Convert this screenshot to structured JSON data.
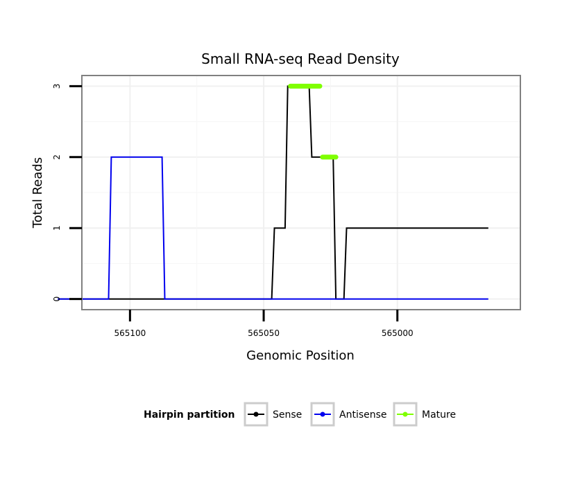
{
  "chart_data": {
    "type": "line",
    "title": "Small RNA-seq Read Density",
    "xlabel": "Genomic Position",
    "ylabel": "Total Reads",
    "x_reversed": true,
    "xlim": [
      565118,
      564954
    ],
    "ylim": [
      -0.15,
      3.15
    ],
    "x_ticks": [
      565100,
      565050,
      565000
    ],
    "x_tick_labels": [
      "565100",
      "565050",
      "565000"
    ],
    "y_ticks": [
      0,
      1,
      2,
      3
    ],
    "y_tick_labels": [
      "0",
      "1",
      "2",
      "3"
    ],
    "legend": {
      "title": "Hairpin partition",
      "position": "bottom",
      "entries": [
        {
          "label": "Sense",
          "color": "#000000"
        },
        {
          "label": "Antisense",
          "color": "#0000ee"
        },
        {
          "label": "Mature",
          "color": "#7fff00"
        }
      ]
    },
    "series": [
      {
        "name": "Sense",
        "color": "#000000",
        "x": [
          565127,
          565047,
          565046,
          565042,
          565041,
          565035,
          565034,
          565033,
          565032,
          565029,
          565028,
          565026,
          565025,
          565024,
          565023,
          565022,
          565021,
          565020,
          565019,
          565018,
          565017,
          565016,
          565015,
          565014,
          565013,
          565012,
          565011,
          565010,
          565009,
          565008,
          565007,
          565006,
          565005,
          565004,
          565003,
          565002,
          565001,
          565000,
          564999,
          564998,
          564997,
          564996,
          564995,
          564994,
          564993,
          564992,
          564991,
          564990,
          564989,
          564988,
          564987,
          564986,
          564985,
          564984,
          564983,
          564982,
          564981,
          564980,
          564979,
          564978,
          564977,
          564976,
          564975,
          564974,
          564973,
          564972,
          564971,
          564970,
          564969,
          564968,
          564967,
          564966
        ],
        "y": [
          0,
          0,
          1,
          1,
          3,
          3,
          3,
          3,
          2,
          2,
          2,
          2,
          2,
          2,
          0,
          0,
          0,
          0,
          1,
          1,
          1,
          1,
          1,
          1,
          1,
          1,
          1,
          1,
          1,
          1,
          1,
          1,
          1,
          1,
          1,
          1,
          1,
          1,
          1,
          1,
          1,
          1,
          1,
          1,
          1,
          1,
          1,
          1,
          1,
          1,
          1,
          1,
          1,
          1,
          1,
          1,
          1,
          1,
          1,
          1,
          1,
          1,
          1,
          1,
          1,
          1,
          1,
          1,
          1,
          1,
          1,
          1
        ]
      },
      {
        "name": "Antisense",
        "color": "#0000ee",
        "x": [
          565127,
          565108,
          565107,
          565088,
          565087,
          564966
        ],
        "y": [
          0,
          0,
          2,
          2,
          0,
          0
        ]
      },
      {
        "name": "Mature",
        "color": "#7fff00",
        "x": [
          565040,
          565029,
          565028,
          565023
        ],
        "y": [
          3,
          3,
          2,
          2
        ]
      }
    ]
  }
}
